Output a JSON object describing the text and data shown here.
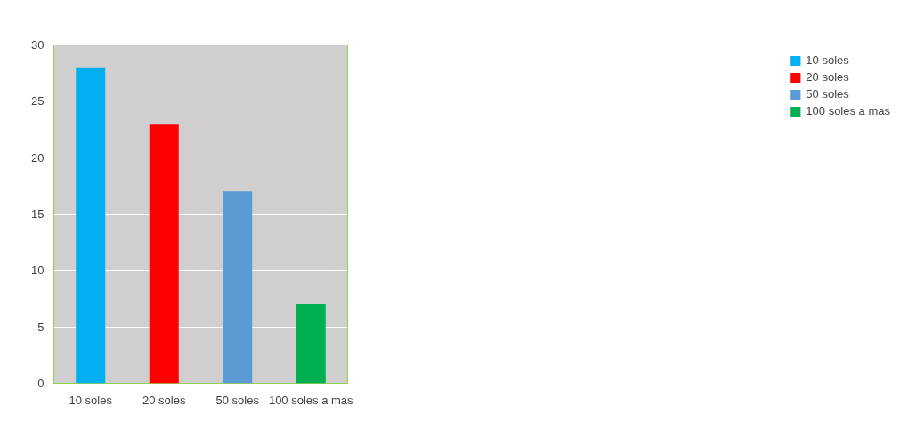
{
  "chart_data": {
    "type": "bar",
    "categories": [
      "10 soles",
      "20 soles",
      "50 soles",
      "100 soles a mas"
    ],
    "series": [
      {
        "name": "10 soles",
        "color": "#00b0f0",
        "values": [
          28,
          null,
          null,
          null
        ]
      },
      {
        "name": "20 soles",
        "color": "#ff0000",
        "values": [
          null,
          23,
          null,
          null
        ]
      },
      {
        "name": "50 soles",
        "color": "#5b9bd5",
        "values": [
          null,
          null,
          17,
          null
        ]
      },
      {
        "name": "100 soles a mas",
        "color": "#00b050",
        "values": [
          null,
          null,
          null,
          7
        ]
      }
    ],
    "ylim": [
      0,
      30
    ],
    "yticks": [
      0,
      5,
      10,
      15,
      20,
      25,
      30
    ],
    "grid": "y",
    "legend": "right"
  }
}
